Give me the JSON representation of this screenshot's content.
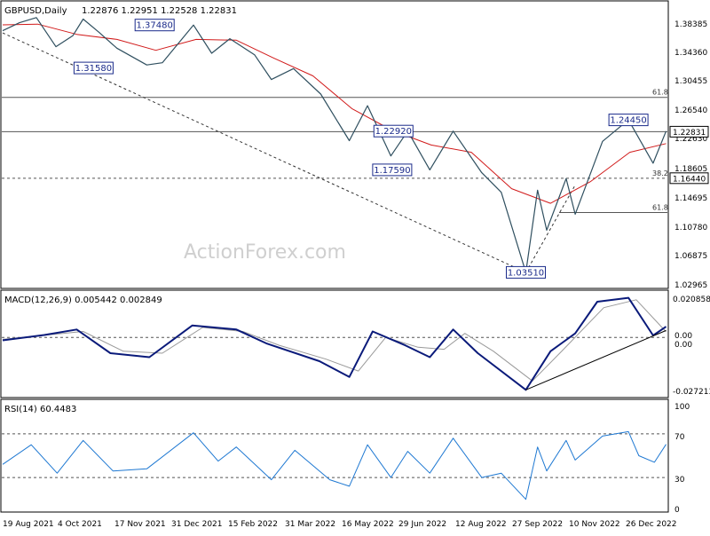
{
  "chart_data": {
    "type": "line",
    "instrument": "GBPUSD,Daily",
    "ohlc_header": "1.22876 1.22951 1.22528 1.22831",
    "colors": {
      "price": "#2f4f5f",
      "ma": "#d11a1a",
      "macd": "#0a1a7a",
      "signal": "#999999",
      "rsi": "#1e78d2",
      "axis_text": "#000000",
      "hline": "#555555",
      "watermark": "#c8c8c8"
    },
    "watermark": "ActionForex.com",
    "x_ticks": [
      "19 Aug 2021",
      "4 Oct 2021",
      "17 Nov 2021",
      "31 Dec 2021",
      "15 Feb 2022",
      "31 Mar 2022",
      "16 May 2022",
      "29 Jun 2022",
      "12 Aug 2022",
      "27 Sep 2022",
      "10 Nov 2022",
      "26 Dec 2022"
    ],
    "price_panel": {
      "ylim": [
        1.0155,
        1.4055
      ],
      "y_ticks": [
        "1.38385",
        "1.34360",
        "1.30455",
        "1.26540",
        "1.22630",
        "1.18605",
        "1.14695",
        "1.10780",
        "1.06875",
        "1.02965"
      ],
      "current_price_label": "1.22831",
      "current_price": 1.22831,
      "support_label": "1.16440",
      "support_level": 1.1644,
      "fib_lines": [
        {
          "label": "61.8",
          "value": 1.2754
        },
        {
          "label": "38.2",
          "value": 1.1644
        },
        {
          "label": "61.8",
          "value": 1.1172
        }
      ],
      "annotations": [
        {
          "text": "1.37480",
          "x": "2021-12-14",
          "y": 1.3748
        },
        {
          "text": "1.31580",
          "x": "2021-10-28",
          "y": 1.3158
        },
        {
          "text": "1.22920",
          "x": "2022-06-16",
          "y": 1.2292
        },
        {
          "text": "1.17590",
          "x": "2022-06-15",
          "y": 1.1759
        },
        {
          "text": "1.03510",
          "x": "2022-09-26",
          "y": 1.0351
        },
        {
          "text": "1.24450",
          "x": "2022-12-14",
          "y": 1.2445
        }
      ],
      "price_series": [
        {
          "date": "2021-08-19",
          "value": 1.367
        },
        {
          "date": "2021-09-01",
          "value": 1.378
        },
        {
          "date": "2021-09-14",
          "value": 1.385
        },
        {
          "date": "2021-09-29",
          "value": 1.345
        },
        {
          "date": "2021-10-12",
          "value": 1.36
        },
        {
          "date": "2021-10-20",
          "value": 1.383
        },
        {
          "date": "2021-11-01",
          "value": 1.365
        },
        {
          "date": "2021-11-15",
          "value": 1.343
        },
        {
          "date": "2021-12-08",
          "value": 1.32
        },
        {
          "date": "2021-12-20",
          "value": 1.323
        },
        {
          "date": "2022-01-13",
          "value": 1.3748
        },
        {
          "date": "2022-01-27",
          "value": 1.336
        },
        {
          "date": "2022-02-10",
          "value": 1.356
        },
        {
          "date": "2022-03-01",
          "value": 1.334
        },
        {
          "date": "2022-03-14",
          "value": 1.3
        },
        {
          "date": "2022-03-31",
          "value": 1.315
        },
        {
          "date": "2022-04-21",
          "value": 1.28
        },
        {
          "date": "2022-05-13",
          "value": 1.216
        },
        {
          "date": "2022-05-27",
          "value": 1.264
        },
        {
          "date": "2022-06-14",
          "value": 1.195
        },
        {
          "date": "2022-06-27",
          "value": 1.2292
        },
        {
          "date": "2022-07-14",
          "value": 1.1759
        },
        {
          "date": "2022-08-01",
          "value": 1.229
        },
        {
          "date": "2022-08-23",
          "value": 1.172
        },
        {
          "date": "2022-09-07",
          "value": 1.145
        },
        {
          "date": "2022-09-26",
          "value": 1.0351
        },
        {
          "date": "2022-10-05",
          "value": 1.148
        },
        {
          "date": "2022-10-12",
          "value": 1.093
        },
        {
          "date": "2022-10-27",
          "value": 1.164
        },
        {
          "date": "2022-11-03",
          "value": 1.115
        },
        {
          "date": "2022-11-24",
          "value": 1.215
        },
        {
          "date": "2022-12-14",
          "value": 1.2445
        },
        {
          "date": "2023-01-02",
          "value": 1.185
        },
        {
          "date": "2023-01-12",
          "value": 1.229
        }
      ],
      "ma_series": [
        {
          "date": "2021-08-19",
          "value": 1.375
        },
        {
          "date": "2021-09-15",
          "value": 1.376
        },
        {
          "date": "2021-10-15",
          "value": 1.362
        },
        {
          "date": "2021-11-15",
          "value": 1.355
        },
        {
          "date": "2021-12-15",
          "value": 1.34
        },
        {
          "date": "2022-01-15",
          "value": 1.355
        },
        {
          "date": "2022-02-15",
          "value": 1.354
        },
        {
          "date": "2022-03-15",
          "value": 1.33
        },
        {
          "date": "2022-04-15",
          "value": 1.305
        },
        {
          "date": "2022-05-15",
          "value": 1.26
        },
        {
          "date": "2022-06-15",
          "value": 1.23
        },
        {
          "date": "2022-07-15",
          "value": 1.21
        },
        {
          "date": "2022-08-15",
          "value": 1.2
        },
        {
          "date": "2022-09-15",
          "value": 1.15
        },
        {
          "date": "2022-10-15",
          "value": 1.13
        },
        {
          "date": "2022-11-15",
          "value": 1.16
        },
        {
          "date": "2022-12-15",
          "value": 1.2
        },
        {
          "date": "2023-01-12",
          "value": 1.212
        }
      ],
      "trendlines": [
        {
          "from": {
            "date": "2021-08-19",
            "value": 1.364
          },
          "to": {
            "date": "2022-09-26",
            "value": 1.0351
          }
        },
        {
          "from": {
            "date": "2022-09-26",
            "value": 1.0351
          },
          "to": {
            "date": "2022-11-03",
            "value": 1.155
          }
        }
      ]
    },
    "macd_panel": {
      "label": "MACD(12,26,9) 0.005442 0.002849",
      "ylim": [
        -0.0295,
        0.0225
      ],
      "y_ticks": [
        "0.020858",
        "0.00",
        "0.00",
        "-0.027213"
      ],
      "zero_line": 0.0,
      "macd_series": [
        {
          "date": "2021-08-19",
          "value": -0.0015
        },
        {
          "date": "2021-09-20",
          "value": 0.0012
        },
        {
          "date": "2021-10-15",
          "value": 0.004
        },
        {
          "date": "2021-11-10",
          "value": -0.008
        },
        {
          "date": "2021-12-10",
          "value": -0.01
        },
        {
          "date": "2022-01-12",
          "value": 0.006
        },
        {
          "date": "2022-02-15",
          "value": 0.004
        },
        {
          "date": "2022-03-10",
          "value": -0.003
        },
        {
          "date": "2022-04-20",
          "value": -0.012
        },
        {
          "date": "2022-05-13",
          "value": -0.02
        },
        {
          "date": "2022-05-31",
          "value": 0.003
        },
        {
          "date": "2022-06-25",
          "value": -0.004
        },
        {
          "date": "2022-07-14",
          "value": -0.01
        },
        {
          "date": "2022-08-01",
          "value": 0.004
        },
        {
          "date": "2022-08-20",
          "value": -0.008
        },
        {
          "date": "2022-09-26",
          "value": -0.0265
        },
        {
          "date": "2022-10-15",
          "value": -0.007
        },
        {
          "date": "2022-11-03",
          "value": 0.002
        },
        {
          "date": "2022-11-20",
          "value": 0.018
        },
        {
          "date": "2022-12-14",
          "value": 0.02
        },
        {
          "date": "2023-01-02",
          "value": 0.001
        },
        {
          "date": "2023-01-12",
          "value": 0.0054
        }
      ],
      "signal_series": [
        {
          "date": "2021-08-19",
          "value": -0.001
        },
        {
          "date": "2021-10-20",
          "value": 0.003
        },
        {
          "date": "2021-11-20",
          "value": -0.007
        },
        {
          "date": "2021-12-20",
          "value": -0.008
        },
        {
          "date": "2022-01-20",
          "value": 0.005
        },
        {
          "date": "2022-02-20",
          "value": 0.003
        },
        {
          "date": "2022-03-20",
          "value": -0.004
        },
        {
          "date": "2022-04-25",
          "value": -0.011
        },
        {
          "date": "2022-05-20",
          "value": -0.017
        },
        {
          "date": "2022-06-10",
          "value": 0.0
        },
        {
          "date": "2022-07-05",
          "value": -0.005
        },
        {
          "date": "2022-07-25",
          "value": -0.006
        },
        {
          "date": "2022-08-10",
          "value": 0.002
        },
        {
          "date": "2022-09-01",
          "value": -0.007
        },
        {
          "date": "2022-10-01",
          "value": -0.022
        },
        {
          "date": "2022-10-25",
          "value": -0.006
        },
        {
          "date": "2022-11-25",
          "value": 0.015
        },
        {
          "date": "2022-12-20",
          "value": 0.019
        },
        {
          "date": "2023-01-12",
          "value": 0.0028
        }
      ],
      "trendline": {
        "from": {
          "date": "2022-09-26",
          "value": -0.0265
        },
        "to": {
          "date": "2023-01-12",
          "value": 0.0035
        }
      }
    },
    "rsi_panel": {
      "label": "RSI(14) 60.4483",
      "ylim": [
        0,
        100
      ],
      "y_ticks": [
        "100",
        "70",
        "30",
        "0"
      ],
      "levels": [
        70,
        30
      ],
      "rsi_series": [
        {
          "date": "2021-08-19",
          "value": 42
        },
        {
          "date": "2021-09-10",
          "value": 60
        },
        {
          "date": "2021-09-30",
          "value": 34
        },
        {
          "date": "2021-10-20",
          "value": 64
        },
        {
          "date": "2021-11-12",
          "value": 36
        },
        {
          "date": "2021-12-08",
          "value": 38
        },
        {
          "date": "2022-01-13",
          "value": 71
        },
        {
          "date": "2022-02-01",
          "value": 45
        },
        {
          "date": "2022-02-15",
          "value": 58
        },
        {
          "date": "2022-03-14",
          "value": 28
        },
        {
          "date": "2022-04-01",
          "value": 55
        },
        {
          "date": "2022-04-28",
          "value": 28
        },
        {
          "date": "2022-05-13",
          "value": 22
        },
        {
          "date": "2022-05-27",
          "value": 60
        },
        {
          "date": "2022-06-14",
          "value": 30
        },
        {
          "date": "2022-06-27",
          "value": 54
        },
        {
          "date": "2022-07-14",
          "value": 34
        },
        {
          "date": "2022-08-01",
          "value": 66
        },
        {
          "date": "2022-08-23",
          "value": 30
        },
        {
          "date": "2022-09-07",
          "value": 34
        },
        {
          "date": "2022-09-26",
          "value": 10
        },
        {
          "date": "2022-10-05",
          "value": 58
        },
        {
          "date": "2022-10-12",
          "value": 36
        },
        {
          "date": "2022-10-27",
          "value": 64
        },
        {
          "date": "2022-11-03",
          "value": 46
        },
        {
          "date": "2022-11-24",
          "value": 68
        },
        {
          "date": "2022-12-14",
          "value": 72
        },
        {
          "date": "2022-12-22",
          "value": 50
        },
        {
          "date": "2023-01-03",
          "value": 44
        },
        {
          "date": "2023-01-12",
          "value": 60.4
        }
      ]
    }
  }
}
